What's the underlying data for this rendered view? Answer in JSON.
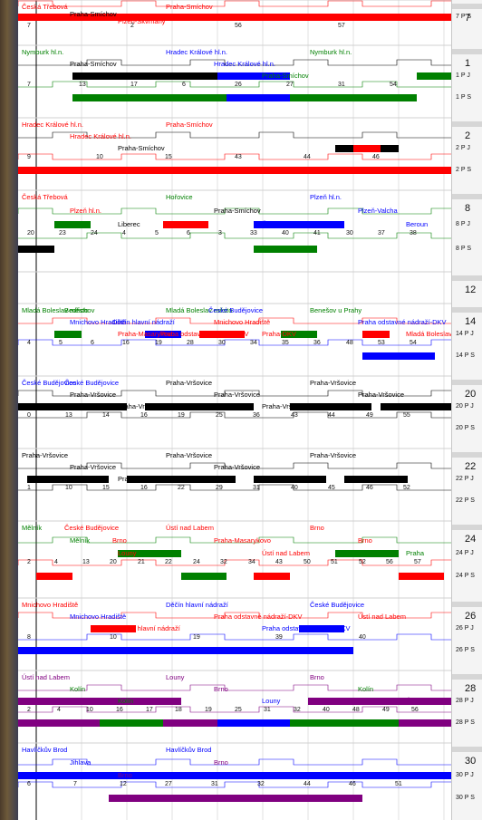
{
  "colors": {
    "red": "#ff0000",
    "green": "#008000",
    "black": "#000000",
    "blue": "#0000ff",
    "purple": "#800080",
    "white": "#ffffff"
  },
  "groups": [
    {
      "id": "7",
      "top": 0,
      "rows": [
        {
          "label": "7 P S",
          "color": "red"
        }
      ],
      "stations": [
        {
          "text": "Česká Třebová",
          "color": "red"
        },
        {
          "text": "Praha-Smíchov",
          "color": "black"
        },
        {
          "text": "Plzeň-Skvrňany",
          "color": "red"
        },
        {
          "text": "Praha-Smíchov",
          "color": "red"
        }
      ],
      "numbers": [
        "7",
        "2",
        "56",
        "57"
      ]
    },
    {
      "id": "1",
      "rows": [
        {
          "label": "1 P J",
          "color": "black"
        },
        {
          "label": "1 P S",
          "color": "green"
        }
      ],
      "stations": [
        {
          "text": "Nymburk hl.n.",
          "color": "green"
        },
        {
          "text": "Praha-Smíchov",
          "color": "black"
        },
        {
          "text": "Praha-Smíchov",
          "color": "black"
        },
        {
          "text": "Hradec Králové hl.n.",
          "color": "blue"
        },
        {
          "text": "Hradec Králové hl.n.",
          "color": "blue"
        },
        {
          "text": "Praha-Smíchov",
          "color": "green"
        },
        {
          "text": "Nymburk hl.n.",
          "color": "green"
        }
      ],
      "numbers": [
        "7",
        "13",
        "17",
        "6",
        "26",
        "27",
        "31",
        "54"
      ]
    },
    {
      "id": "2",
      "rows": [
        {
          "label": "2 P J",
          "color": "black"
        },
        {
          "label": "2 P S",
          "color": "red"
        }
      ],
      "stations": [
        {
          "text": "Hradec Králové hl.n.",
          "color": "red"
        },
        {
          "text": "Hradec Králové hl.n.",
          "color": "red"
        },
        {
          "text": "Praha-Smíchov",
          "color": "black"
        },
        {
          "text": "Praha-Smíchov",
          "color": "red"
        }
      ],
      "numbers": [
        "9",
        "10",
        "15",
        "43",
        "44",
        "46"
      ]
    },
    {
      "id": "8",
      "rows": [
        {
          "label": "8 P J",
          "color": "green"
        },
        {
          "label": "8 P S",
          "color": "green"
        }
      ],
      "stations": [
        {
          "text": "Česká Třebová",
          "color": "red"
        },
        {
          "text": "Plzeň hl.n.",
          "color": "red"
        },
        {
          "text": "Liberec",
          "color": "black"
        },
        {
          "text": "Hořovice",
          "color": "green"
        },
        {
          "text": "Praha-Smíchov",
          "color": "black"
        },
        {
          "text": "Česká Třebová",
          "color": "blue"
        },
        {
          "text": "Plzeň hl.n.",
          "color": "blue"
        },
        {
          "text": "Plzeň-Valcha",
          "color": "blue"
        },
        {
          "text": "Beroun",
          "color": "blue"
        }
      ],
      "numbers": [
        "20",
        "23",
        "24",
        "4",
        "5",
        "6",
        "3",
        "33",
        "40",
        "41",
        "30",
        "37",
        "38"
      ]
    },
    {
      "id": "12",
      "rows": [],
      "stations": [],
      "numbers": []
    },
    {
      "id": "14",
      "rows": [
        {
          "label": "14 P J",
          "color": "red"
        },
        {
          "label": "14 P S",
          "color": "blue"
        }
      ],
      "stations": [
        {
          "text": "Mladá Boleslav město",
          "color": "green"
        },
        {
          "text": "Mnichovo Hradiště",
          "color": "blue"
        },
        {
          "text": "Praha-Masarykovo",
          "color": "red"
        },
        {
          "text": "Mladá Boleslav město",
          "color": "green"
        },
        {
          "text": "Mnichovo Hradiště",
          "color": "red"
        },
        {
          "text": "Praha-DKV",
          "color": "red"
        },
        {
          "text": "Benešov u Prahy",
          "color": "green"
        },
        {
          "text": "Praha odstavné nádraží-DKV",
          "color": "blue"
        },
        {
          "text": "Mladá Boleslav",
          "color": "red"
        },
        {
          "text": "Bedřichov",
          "color": "green"
        },
        {
          "text": "Děčín hlavní nádraží",
          "color": "blue"
        },
        {
          "text": "Praha odstavné nádraží-DKV",
          "color": "red"
        },
        {
          "text": "České Budějovice",
          "color": "blue"
        }
      ],
      "numbers": [
        "4",
        "5",
        "6",
        "16",
        "19",
        "28",
        "30",
        "34",
        "35",
        "36",
        "48",
        "53",
        "54"
      ]
    },
    {
      "id": "20",
      "rows": [
        {
          "label": "20 P J",
          "color": "black"
        },
        {
          "label": "20 P S",
          "color": "black"
        }
      ],
      "stations": [
        {
          "text": "České Budějovice",
          "color": "blue"
        },
        {
          "text": "Praha-Vršovice",
          "color": "black"
        },
        {
          "text": "Praha-Vršovice",
          "color": "black"
        },
        {
          "text": "Praha-Vršovice",
          "color": "black"
        },
        {
          "text": "Praha-Vršovice",
          "color": "black"
        },
        {
          "text": "Praha-Vršovice",
          "color": "black"
        },
        {
          "text": "Praha-Vršovice",
          "color": "black"
        },
        {
          "text": "Praha-Vršovice",
          "color": "black"
        },
        {
          "text": "Praha-Vršovice",
          "color": "black"
        },
        {
          "text": "České Budějovice",
          "color": "blue"
        }
      ],
      "numbers": [
        "0",
        "13",
        "14",
        "16",
        "19",
        "25",
        "36",
        "43",
        "44",
        "49",
        "55"
      ]
    },
    {
      "id": "22",
      "rows": [
        {
          "label": "22 P J",
          "color": "black"
        },
        {
          "label": "22 P S",
          "color": "black"
        }
      ],
      "stations": [
        {
          "text": "Praha-Vršovice",
          "color": "black"
        },
        {
          "text": "Praha-Vršovice",
          "color": "black"
        },
        {
          "text": "Praha-Vršovice",
          "color": "black"
        },
        {
          "text": "Praha-Vršovice",
          "color": "black"
        },
        {
          "text": "Praha-Vršovice",
          "color": "black"
        },
        {
          "text": "Praha-Vršovice",
          "color": "black"
        },
        {
          "text": "Praha-Vršovice",
          "color": "black"
        }
      ],
      "numbers": [
        "1",
        "10",
        "15",
        "16",
        "22",
        "29",
        "31",
        "40",
        "45",
        "46",
        "52"
      ]
    },
    {
      "id": "24",
      "rows": [
        {
          "label": "24 P J",
          "color": "green"
        },
        {
          "label": "24 P S",
          "color": "red"
        }
      ],
      "stations": [
        {
          "text": "Mělník",
          "color": "green"
        },
        {
          "text": "Mělník",
          "color": "green"
        },
        {
          "text": "Louny",
          "color": "red"
        },
        {
          "text": "Ústí nad Labem",
          "color": "red"
        },
        {
          "text": "Praha-Masarykovo",
          "color": "red"
        },
        {
          "text": "Ústí nad Labem",
          "color": "red"
        },
        {
          "text": "Brno",
          "color": "red"
        },
        {
          "text": "Brno",
          "color": "red"
        },
        {
          "text": "Praha",
          "color": "green"
        },
        {
          "text": "České Budějovice",
          "color": "red"
        },
        {
          "text": "Brno",
          "color": "red"
        }
      ],
      "numbers": [
        "2",
        "4",
        "13",
        "20",
        "21",
        "22",
        "24",
        "32",
        "34",
        "43",
        "50",
        "51",
        "52",
        "56",
        "57"
      ]
    },
    {
      "id": "26",
      "rows": [
        {
          "label": "26 P J",
          "color": "red"
        },
        {
          "label": "26 P S",
          "color": "blue"
        }
      ],
      "stations": [
        {
          "text": "Mnichovo Hradiště",
          "color": "red"
        },
        {
          "text": "Mnichovo Hradiště",
          "color": "blue"
        },
        {
          "text": "Děčín hlavní nádraží",
          "color": "red"
        },
        {
          "text": "Děčín hlavní nádraží",
          "color": "blue"
        },
        {
          "text": "Praha odstavné nádraží-DKV",
          "color": "red"
        },
        {
          "text": "Praha odstavné nádraží-DKV",
          "color": "blue"
        },
        {
          "text": "České Budějovice",
          "color": "blue"
        },
        {
          "text": "Ústí nad Labem",
          "color": "red"
        }
      ],
      "numbers": [
        "8",
        "10",
        "19",
        "39",
        "40"
      ]
    },
    {
      "id": "28",
      "rows": [
        {
          "label": "28 P J",
          "color": "purple"
        },
        {
          "label": "28 P S",
          "color": "purple"
        }
      ],
      "stations": [
        {
          "text": "Ústí nad Labem",
          "color": "purple"
        },
        {
          "text": "Kolín",
          "color": "green"
        },
        {
          "text": "Kolín",
          "color": "green"
        },
        {
          "text": "Louny",
          "color": "purple"
        },
        {
          "text": "Brno",
          "color": "purple"
        },
        {
          "text": "Louny",
          "color": "blue"
        },
        {
          "text": "Brno",
          "color": "purple"
        },
        {
          "text": "Kolín",
          "color": "green"
        },
        {
          "text": "Ústí nad Labem",
          "color": "purple"
        }
      ],
      "numbers": [
        "2",
        "4",
        "10",
        "16",
        "17",
        "18",
        "19",
        "25",
        "31",
        "32",
        "40",
        "48",
        "49",
        "56"
      ]
    },
    {
      "id": "30",
      "rows": [
        {
          "label": "30 P J",
          "color": "blue"
        },
        {
          "label": "30 P S",
          "color": "blue"
        }
      ],
      "stations": [
        {
          "text": "Havlíčkův Brod",
          "color": "blue"
        },
        {
          "text": "Jihlava",
          "color": "blue"
        },
        {
          "text": "Brno",
          "color": "purple"
        },
        {
          "text": "Havlíčkův Brod",
          "color": "blue"
        },
        {
          "text": "Brno",
          "color": "purple"
        }
      ],
      "numbers": [
        "6",
        "7",
        "12",
        "27",
        "31",
        "32",
        "44",
        "46",
        "51"
      ]
    }
  ]
}
